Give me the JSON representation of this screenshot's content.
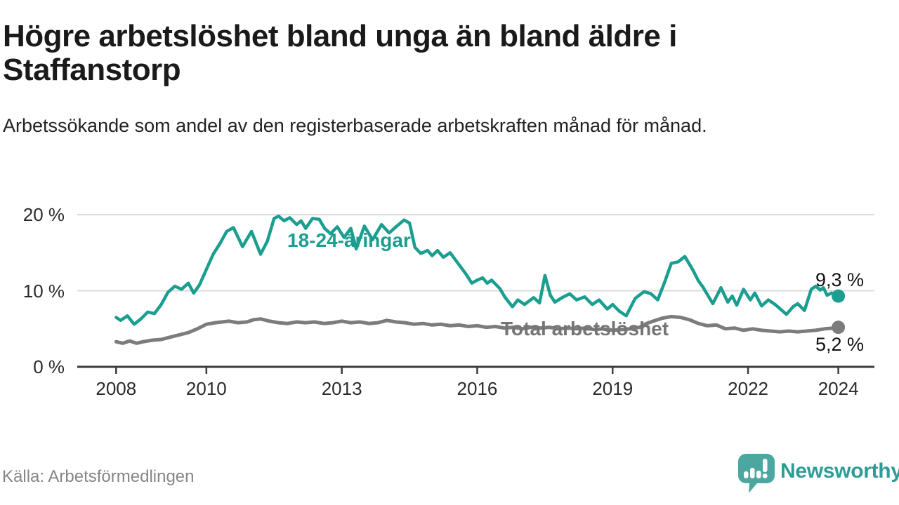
{
  "header": {
    "title": "Högre arbetslöshet bland unga än bland äldre i Staffanstorp",
    "subtitle": "Arbetssökande som andel av den registerbaserade arbetskraften månad för månad."
  },
  "footer": {
    "source": "Källa: Arbetsförmedlingen",
    "brand": "Newsworthy"
  },
  "colors": {
    "youth": "#1A9E90",
    "total": "#7C7C7C",
    "total_label": "#757575",
    "grid": "#DBDBDB",
    "axis": "#3C3C3C",
    "title": "#1A1A1A",
    "subtitle": "#222222",
    "tick": "#2B2B2B",
    "value": "#111111",
    "source": "#868686",
    "brand": "#2E9C96",
    "brand_bubble": "#4CA7A1"
  },
  "chart_data": {
    "type": "line",
    "title": "Högre arbetslöshet bland unga än bland äldre i Staffanstorp",
    "subtitle": "Arbetssökande som andel av den registerbaserade arbetskraften månad för månad.",
    "xlabel": "",
    "ylabel": "",
    "xlim": [
      2007.1,
      2024.8
    ],
    "ylim": [
      0,
      21.5
    ],
    "grid": "horizontal",
    "legend_position": "inline-labels",
    "x_ticks": [
      2008,
      2010,
      2013,
      2016,
      2019,
      2022,
      2024
    ],
    "y_ticks": [
      {
        "value": 0,
        "label": "0 %"
      },
      {
        "value": 10,
        "label": "10 %"
      },
      {
        "value": 20,
        "label": "20 %"
      }
    ],
    "series": [
      {
        "name": "18-24-åringar",
        "color": "#1A9E90",
        "end_label": "9,3 %",
        "end_value": 9.3,
        "points": [
          [
            2008.0,
            6.5
          ],
          [
            2008.1,
            6.1
          ],
          [
            2008.25,
            6.7
          ],
          [
            2008.4,
            5.6
          ],
          [
            2008.55,
            6.3
          ],
          [
            2008.7,
            7.2
          ],
          [
            2008.85,
            7.0
          ],
          [
            2009.0,
            8.2
          ],
          [
            2009.15,
            9.8
          ],
          [
            2009.3,
            10.6
          ],
          [
            2009.45,
            10.2
          ],
          [
            2009.6,
            11.0
          ],
          [
            2009.72,
            9.7
          ],
          [
            2009.85,
            10.8
          ],
          [
            2010.0,
            12.8
          ],
          [
            2010.15,
            14.8
          ],
          [
            2010.3,
            16.2
          ],
          [
            2010.45,
            17.8
          ],
          [
            2010.6,
            18.3
          ],
          [
            2010.8,
            15.8
          ],
          [
            2011.0,
            17.8
          ],
          [
            2011.2,
            14.8
          ],
          [
            2011.35,
            16.5
          ],
          [
            2011.5,
            19.5
          ],
          [
            2011.6,
            19.8
          ],
          [
            2011.72,
            19.2
          ],
          [
            2011.85,
            19.6
          ],
          [
            2012.0,
            18.7
          ],
          [
            2012.1,
            19.2
          ],
          [
            2012.2,
            18.2
          ],
          [
            2012.35,
            19.5
          ],
          [
            2012.5,
            19.4
          ],
          [
            2012.62,
            18.2
          ],
          [
            2012.75,
            17.5
          ],
          [
            2012.9,
            18.4
          ],
          [
            2013.05,
            17.0
          ],
          [
            2013.2,
            18.2
          ],
          [
            2013.32,
            15.5
          ],
          [
            2013.5,
            18.5
          ],
          [
            2013.68,
            16.7
          ],
          [
            2013.88,
            18.7
          ],
          [
            2014.05,
            17.6
          ],
          [
            2014.2,
            18.4
          ],
          [
            2014.38,
            19.3
          ],
          [
            2014.5,
            18.9
          ],
          [
            2014.62,
            15.7
          ],
          [
            2014.75,
            14.9
          ],
          [
            2014.9,
            15.3
          ],
          [
            2015.0,
            14.6
          ],
          [
            2015.12,
            15.3
          ],
          [
            2015.25,
            14.4
          ],
          [
            2015.4,
            15.0
          ],
          [
            2015.6,
            13.4
          ],
          [
            2015.75,
            12.2
          ],
          [
            2015.88,
            11.0
          ],
          [
            2016.0,
            11.4
          ],
          [
            2016.12,
            11.7
          ],
          [
            2016.22,
            11.0
          ],
          [
            2016.32,
            11.4
          ],
          [
            2016.5,
            10.3
          ],
          [
            2016.62,
            9.1
          ],
          [
            2016.78,
            7.9
          ],
          [
            2016.9,
            8.8
          ],
          [
            2017.05,
            8.2
          ],
          [
            2017.25,
            9.1
          ],
          [
            2017.38,
            8.4
          ],
          [
            2017.5,
            12.0
          ],
          [
            2017.62,
            9.4
          ],
          [
            2017.72,
            8.5
          ],
          [
            2017.88,
            9.1
          ],
          [
            2018.05,
            9.6
          ],
          [
            2018.2,
            8.8
          ],
          [
            2018.38,
            9.2
          ],
          [
            2018.55,
            8.2
          ],
          [
            2018.7,
            8.8
          ],
          [
            2018.88,
            7.6
          ],
          [
            2019.0,
            8.2
          ],
          [
            2019.15,
            7.3
          ],
          [
            2019.3,
            6.7
          ],
          [
            2019.5,
            9.0
          ],
          [
            2019.7,
            9.9
          ],
          [
            2019.85,
            9.6
          ],
          [
            2020.0,
            8.8
          ],
          [
            2020.15,
            11.1
          ],
          [
            2020.3,
            13.6
          ],
          [
            2020.45,
            13.8
          ],
          [
            2020.6,
            14.5
          ],
          [
            2020.78,
            12.7
          ],
          [
            2020.9,
            11.3
          ],
          [
            2021.0,
            10.5
          ],
          [
            2021.22,
            8.3
          ],
          [
            2021.4,
            10.4
          ],
          [
            2021.55,
            8.5
          ],
          [
            2021.65,
            9.3
          ],
          [
            2021.75,
            8.1
          ],
          [
            2021.9,
            10.2
          ],
          [
            2022.05,
            8.8
          ],
          [
            2022.15,
            9.7
          ],
          [
            2022.3,
            8.0
          ],
          [
            2022.45,
            8.8
          ],
          [
            2022.6,
            8.2
          ],
          [
            2022.85,
            6.9
          ],
          [
            2023.0,
            7.9
          ],
          [
            2023.1,
            8.3
          ],
          [
            2023.25,
            7.4
          ],
          [
            2023.4,
            10.2
          ],
          [
            2023.5,
            10.6
          ],
          [
            2023.6,
            10.1
          ],
          [
            2023.67,
            10.4
          ],
          [
            2023.75,
            9.4
          ],
          [
            2023.85,
            9.7
          ],
          [
            2024.0,
            9.3
          ]
        ]
      },
      {
        "name": "Total arbetslöshet",
        "color": "#7C7C7C",
        "end_label": "5,2 %",
        "end_value": 5.2,
        "points": [
          [
            2008.0,
            3.3
          ],
          [
            2008.15,
            3.1
          ],
          [
            2008.3,
            3.4
          ],
          [
            2008.45,
            3.1
          ],
          [
            2008.6,
            3.3
          ],
          [
            2008.8,
            3.5
          ],
          [
            2009.0,
            3.6
          ],
          [
            2009.2,
            3.9
          ],
          [
            2009.4,
            4.2
          ],
          [
            2009.6,
            4.5
          ],
          [
            2009.8,
            5.0
          ],
          [
            2010.0,
            5.6
          ],
          [
            2010.2,
            5.8
          ],
          [
            2010.35,
            5.9
          ],
          [
            2010.5,
            6.0
          ],
          [
            2010.7,
            5.8
          ],
          [
            2010.9,
            5.9
          ],
          [
            2011.05,
            6.2
          ],
          [
            2011.2,
            6.3
          ],
          [
            2011.4,
            6.0
          ],
          [
            2011.6,
            5.8
          ],
          [
            2011.8,
            5.7
          ],
          [
            2012.0,
            5.9
          ],
          [
            2012.2,
            5.8
          ],
          [
            2012.4,
            5.9
          ],
          [
            2012.6,
            5.7
          ],
          [
            2012.8,
            5.8
          ],
          [
            2013.0,
            6.0
          ],
          [
            2013.2,
            5.8
          ],
          [
            2013.4,
            5.9
          ],
          [
            2013.6,
            5.7
          ],
          [
            2013.8,
            5.8
          ],
          [
            2014.0,
            6.1
          ],
          [
            2014.2,
            5.9
          ],
          [
            2014.4,
            5.8
          ],
          [
            2014.6,
            5.6
          ],
          [
            2014.8,
            5.7
          ],
          [
            2015.0,
            5.5
          ],
          [
            2015.2,
            5.6
          ],
          [
            2015.4,
            5.4
          ],
          [
            2015.6,
            5.5
          ],
          [
            2015.8,
            5.3
          ],
          [
            2016.0,
            5.4
          ],
          [
            2016.2,
            5.2
          ],
          [
            2016.4,
            5.3
          ],
          [
            2016.6,
            5.1
          ],
          [
            2016.8,
            5.2
          ],
          [
            2017.0,
            5.0
          ],
          [
            2017.2,
            5.2
          ],
          [
            2017.4,
            5.1
          ],
          [
            2017.6,
            5.2
          ],
          [
            2017.8,
            5.0
          ],
          [
            2018.0,
            5.1
          ],
          [
            2018.2,
            5.0
          ],
          [
            2018.4,
            5.1
          ],
          [
            2018.6,
            4.9
          ],
          [
            2018.8,
            5.0
          ],
          [
            2019.0,
            4.8
          ],
          [
            2019.2,
            4.9
          ],
          [
            2019.4,
            5.0
          ],
          [
            2019.6,
            5.2
          ],
          [
            2019.75,
            5.7
          ],
          [
            2019.9,
            6.0
          ],
          [
            2020.1,
            6.4
          ],
          [
            2020.3,
            6.6
          ],
          [
            2020.5,
            6.5
          ],
          [
            2020.7,
            6.2
          ],
          [
            2020.9,
            5.7
          ],
          [
            2021.1,
            5.4
          ],
          [
            2021.3,
            5.5
          ],
          [
            2021.5,
            5.0
          ],
          [
            2021.7,
            5.1
          ],
          [
            2021.9,
            4.8
          ],
          [
            2022.1,
            5.0
          ],
          [
            2022.3,
            4.8
          ],
          [
            2022.5,
            4.7
          ],
          [
            2022.7,
            4.6
          ],
          [
            2022.9,
            4.7
          ],
          [
            2023.1,
            4.6
          ],
          [
            2023.3,
            4.7
          ],
          [
            2023.5,
            4.8
          ],
          [
            2023.7,
            5.0
          ],
          [
            2023.9,
            5.1
          ],
          [
            2024.0,
            5.2
          ]
        ]
      }
    ]
  }
}
